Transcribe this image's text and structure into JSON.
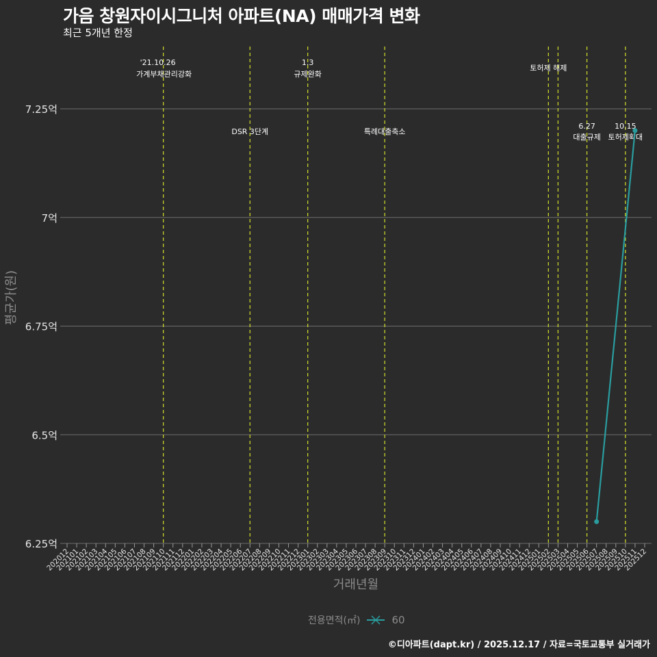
{
  "header": {
    "title": "가음 창원자이시그니처 아파트(NA) 매매가격 변화",
    "subtitle": "최근 5개년 한정"
  },
  "axes": {
    "y_title": "평균가(원)",
    "x_title": "거래년월"
  },
  "legend": {
    "title": "전용면적(㎡)",
    "items": [
      {
        "label": "60",
        "color": "#2a9d9f"
      }
    ]
  },
  "caption": "©디아파트(dapt.kr) / 2025.12.17 / 자료=국토교통부 실거래가",
  "colors": {
    "background": "#2b2b2b",
    "grid": "#6e6e6e",
    "event_line": "#c8d32a",
    "series": "#2a9d9f"
  },
  "chart_data": {
    "type": "line",
    "title": "가음 창원자이시그니처 아파트(NA) 매매가격 변화",
    "subtitle": "최근 5개년 한정",
    "xlabel": "거래년월",
    "ylabel": "평균가(원)",
    "ylim": [
      6.25,
      7.25
    ],
    "y_unit": "억",
    "y_ticks": [
      "6.25억",
      "6.5억",
      "6.75억",
      "7억",
      "7.25억"
    ],
    "y_tick_values": [
      6.25,
      6.5,
      6.75,
      7.0,
      7.25
    ],
    "grid": "horizontal major lines",
    "legend_position": "bottom",
    "x_ticks": [
      "202012",
      "202101",
      "202102",
      "202103",
      "202104",
      "202105",
      "202106",
      "202107",
      "202108",
      "202109",
      "202110",
      "202111",
      "202112",
      "202201",
      "202202",
      "202203",
      "202204",
      "202205",
      "202206",
      "202207",
      "202208",
      "202209",
      "202210",
      "202211",
      "202212",
      "202301",
      "202302",
      "202303",
      "202304",
      "202305",
      "202306",
      "202307",
      "202308",
      "202309",
      "202310",
      "202311",
      "202312",
      "202401",
      "202402",
      "202403",
      "202404",
      "202405",
      "202406",
      "202407",
      "202408",
      "202409",
      "202410",
      "202411",
      "202412",
      "202501",
      "202502",
      "202503",
      "202504",
      "202505",
      "202506",
      "202507",
      "202508",
      "202509",
      "202510",
      "202511",
      "202512"
    ],
    "series": [
      {
        "name": "60",
        "color": "#2a9d9f",
        "x": [
          "202507",
          "202511"
        ],
        "values": [
          6.3,
          7.2
        ]
      }
    ],
    "annotations": [
      {
        "x": "202110",
        "line1": "'21.10.26",
        "line2": "가계부채관리강화",
        "row": "top"
      },
      {
        "x": "202207",
        "line1": "DSR 3단계",
        "line2": "",
        "row": "mid"
      },
      {
        "x": "202301",
        "line1": "1.3",
        "line2": "규제완화",
        "row": "top"
      },
      {
        "x": "202309",
        "line1": "특례대출축소",
        "line2": "",
        "row": "mid"
      },
      {
        "x": "202502",
        "line1": "토허제 해제",
        "line2": "",
        "row": "top"
      },
      {
        "x": "202503",
        "line1": "",
        "line2": "",
        "row": "none"
      },
      {
        "x": "202506",
        "line1": "6.27",
        "line2": "대출규제",
        "row": "mid"
      },
      {
        "x": "202510",
        "line1": "10.15",
        "line2": "토허제확대",
        "row": "mid"
      }
    ]
  }
}
